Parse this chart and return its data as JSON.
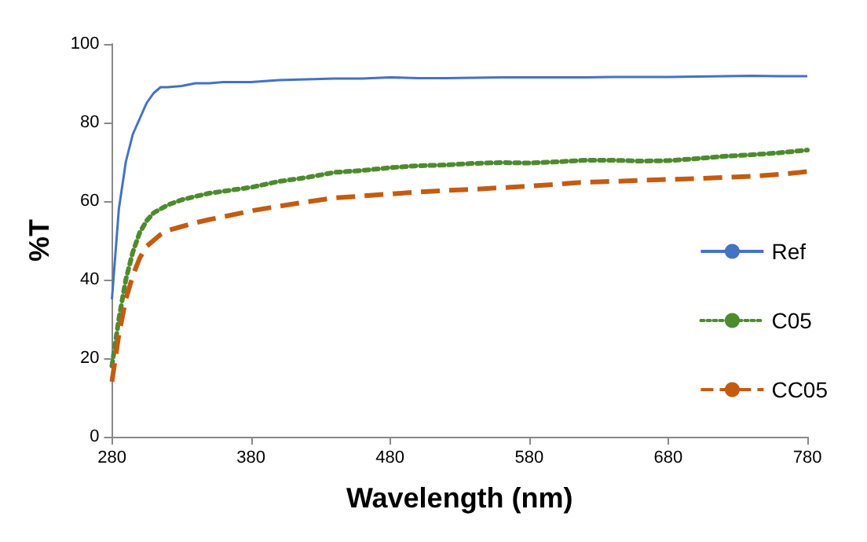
{
  "chart_data": {
    "type": "line",
    "xlabel": "Wavelength (nm)",
    "ylabel": "%T",
    "x": [
      280,
      285,
      290,
      295,
      300,
      305,
      310,
      315,
      320,
      330,
      340,
      350,
      360,
      380,
      400,
      420,
      440,
      460,
      480,
      500,
      520,
      540,
      560,
      580,
      600,
      620,
      640,
      660,
      680,
      700,
      720,
      740,
      760,
      780
    ],
    "series": [
      {
        "name": "Ref",
        "color": "#4472c4",
        "line_style": "solid",
        "values": [
          35,
          58,
          70,
          77,
          81,
          85,
          87.5,
          89,
          89,
          89.3,
          90,
          90,
          90.3,
          90.3,
          90.8,
          91,
          91.2,
          91.2,
          91.5,
          91.3,
          91.3,
          91.4,
          91.5,
          91.5,
          91.5,
          91.5,
          91.6,
          91.6,
          91.6,
          91.7,
          91.8,
          91.9,
          91.8,
          91.8
        ]
      },
      {
        "name": "C05",
        "color": "#4e8a2e",
        "line_style": "dotted",
        "values": [
          18,
          30,
          40,
          47,
          52,
          55,
          57,
          58,
          59,
          60.3,
          61.2,
          62,
          62.5,
          63.5,
          65,
          66,
          67.3,
          67.8,
          68.5,
          69,
          69.2,
          69.6,
          69.8,
          69.7,
          70,
          70.4,
          70.4,
          70.2,
          70.3,
          70.8,
          71.4,
          71.8,
          72.3,
          73
        ]
      },
      {
        "name": "CC05",
        "color": "#c55a11",
        "line_style": "dashed",
        "values": [
          14,
          26,
          35,
          41,
          45.5,
          48.5,
          50,
          51.5,
          52.5,
          53.5,
          54.5,
          55.3,
          56,
          57.5,
          58.7,
          59.8,
          60.8,
          61.3,
          61.8,
          62.3,
          62.7,
          63,
          63.4,
          63.8,
          64.3,
          64.8,
          65,
          65.3,
          65.5,
          65.7,
          66,
          66.3,
          66.8,
          67.5
        ]
      }
    ],
    "xlim": [
      280,
      780
    ],
    "xticks": [
      280,
      380,
      480,
      580,
      680,
      780
    ],
    "ylim": [
      0,
      100
    ],
    "yticks": [
      0,
      20,
      40,
      60,
      80,
      100
    ],
    "grid": false,
    "legend": "right",
    "marker": "none"
  }
}
